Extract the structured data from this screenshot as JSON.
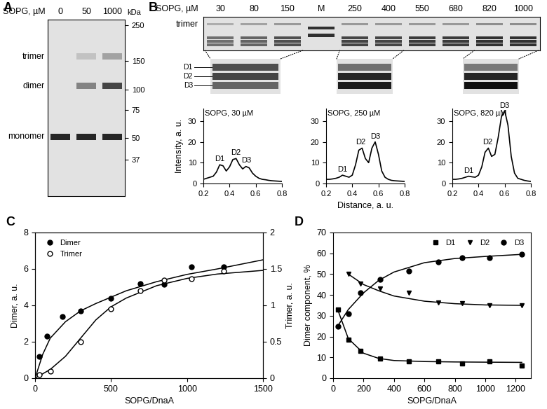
{
  "gel_a": {
    "label": "A",
    "header": "SOPG, µM",
    "lanes": [
      "0",
      "50",
      "1000"
    ],
    "marker_unit": "kDa",
    "markers": [
      250,
      150,
      100,
      75,
      50,
      37
    ],
    "ylim": [
      22,
      270
    ],
    "log": "y",
    "bands": [
      {
        "name": "trimer",
        "kda": 160,
        "intensity": [
          0,
          0.15,
          0.3
        ]
      },
      {
        "name": "dimer",
        "kda": 105,
        "intensity": [
          0,
          0.45,
          0.75
        ]
      },
      {
        "name": "monomer",
        "kda": 51,
        "intensity": [
          0.9,
          0.9,
          0.9
        ]
      }
    ]
  },
  "gel_b": {
    "label": "B",
    "header": "SOPG, µM",
    "lanes": [
      "30",
      "80",
      "150",
      "M",
      "250",
      "400",
      "550",
      "680",
      "820",
      "1000"
    ],
    "band_label": "trimer",
    "trimer": [
      0.25,
      0.3,
      0.35,
      0,
      0.35,
      0.35,
      0.35,
      0.35,
      0.4,
      0.4
    ],
    "dimer": [
      0.55,
      0.6,
      0.7,
      0,
      0.75,
      0.75,
      0.8,
      0.8,
      0.85,
      0.85
    ],
    "marker_bands": [
      0,
      0,
      0,
      0.85,
      0,
      0,
      0,
      0,
      0,
      0
    ],
    "inset_labels": [
      "D1",
      "D2",
      "D3"
    ],
    "insets": [
      {
        "lanes": [
          0,
          2
        ],
        "bands": [
          0.7,
          0.75,
          0.6
        ]
      },
      {
        "lanes": [
          4,
          5
        ],
        "bands": [
          0.55,
          0.9,
          0.95
        ]
      },
      {
        "lanes": [
          8,
          9
        ],
        "bands": [
          0.5,
          0.9,
          1.0
        ]
      }
    ]
  },
  "chart_data": [
    {
      "type": "line",
      "title": "SOPG, 30 µM",
      "ylabel": "Intensity, a. u.",
      "color": "#000000",
      "x": [
        0.2,
        0.225,
        0.25,
        0.275,
        0.3,
        0.325,
        0.35,
        0.375,
        0.4,
        0.425,
        0.45,
        0.475,
        0.5,
        0.525,
        0.55,
        0.575,
        0.6,
        0.625,
        0.65,
        0.675,
        0.7,
        0.725,
        0.75,
        0.775,
        0.8
      ],
      "values": [
        2,
        2.5,
        3,
        3.5,
        5.5,
        9,
        8.5,
        6,
        8,
        11.5,
        12,
        9,
        7,
        8.2,
        7.5,
        5,
        3.5,
        2.5,
        2,
        1.8,
        1.5,
        1.3,
        1.2,
        1.1,
        1
      ],
      "xlim": [
        0.2,
        0.8
      ],
      "xticks": [
        0.2,
        0.4,
        0.6,
        0.8
      ],
      "ylim": [
        0,
        36
      ],
      "yticks": [
        0,
        10,
        20,
        30
      ],
      "annotations": [
        {
          "text": "D1",
          "x": 0.325,
          "y": 10
        },
        {
          "text": "D2",
          "x": 0.45,
          "y": 13
        },
        {
          "text": "D3",
          "x": 0.53,
          "y": 9.5
        }
      ]
    },
    {
      "type": "line",
      "title": "SOPG, 250 µM",
      "xlabel": "Distance, a. u.",
      "color": "#000000",
      "x": [
        0.2,
        0.225,
        0.25,
        0.275,
        0.3,
        0.325,
        0.35,
        0.375,
        0.4,
        0.425,
        0.45,
        0.475,
        0.5,
        0.525,
        0.55,
        0.575,
        0.6,
        0.625,
        0.65,
        0.675,
        0.7,
        0.725,
        0.75,
        0.775,
        0.8
      ],
      "values": [
        2,
        2,
        2.2,
        2.5,
        3,
        4,
        3.5,
        3,
        4,
        9,
        16,
        17,
        12,
        10,
        17,
        20,
        14,
        6,
        3,
        2,
        1.5,
        1.3,
        1.2,
        1.1,
        1
      ],
      "xlim": [
        0.2,
        0.8
      ],
      "xticks": [
        0.2,
        0.4,
        0.6,
        0.8
      ],
      "ylim": [
        0,
        36
      ],
      "yticks": [
        0,
        10,
        20,
        30
      ],
      "annotations": [
        {
          "text": "D1",
          "x": 0.325,
          "y": 5
        },
        {
          "text": "D2",
          "x": 0.465,
          "y": 18
        },
        {
          "text": "D3",
          "x": 0.575,
          "y": 21
        }
      ]
    },
    {
      "type": "line",
      "title": "SOPG, 820 µM",
      "color": "#000000",
      "x": [
        0.2,
        0.225,
        0.25,
        0.275,
        0.3,
        0.325,
        0.35,
        0.375,
        0.4,
        0.425,
        0.45,
        0.475,
        0.5,
        0.525,
        0.55,
        0.575,
        0.6,
        0.625,
        0.65,
        0.675,
        0.7,
        0.725,
        0.75,
        0.775,
        0.8
      ],
      "values": [
        2,
        2,
        2.2,
        2.5,
        3,
        3.5,
        3.2,
        3,
        4,
        8,
        15,
        17,
        13,
        14,
        22,
        32,
        35,
        28,
        13,
        5,
        2.5,
        2,
        1.5,
        1.2,
        1
      ],
      "xlim": [
        0.2,
        0.8
      ],
      "xticks": [
        0.2,
        0.4,
        0.6,
        0.8
      ],
      "ylim": [
        0,
        36
      ],
      "yticks": [
        0,
        10,
        20,
        30
      ],
      "annotations": [
        {
          "text": "D1",
          "x": 0.325,
          "y": 4.5
        },
        {
          "text": "D2",
          "x": 0.47,
          "y": 18
        },
        {
          "text": "D3",
          "x": 0.6,
          "y": 35.5
        }
      ]
    },
    {
      "panel": "C",
      "type": "scatter",
      "xlabel": "SOPG/DnaA",
      "ylabel": "Dimer, a. u.",
      "y2label": "Trimer, a. u.",
      "xlim": [
        0,
        1500
      ],
      "xticks": [
        0,
        500,
        1000,
        1500
      ],
      "ylim": [
        0,
        8
      ],
      "yticks": [
        0,
        2,
        4,
        6,
        8
      ],
      "y2lim": [
        0,
        2
      ],
      "y2ticks": [
        0,
        0.5,
        1,
        1.5,
        2
      ],
      "legend": "upper left",
      "series": [
        {
          "name": "Dimer",
          "color": "#000000",
          "marker": "circle",
          "line_style": "solid",
          "x": [
            30,
            80,
            180,
            300,
            500,
            690,
            850,
            1030,
            1240
          ],
          "values": [
            1.2,
            2.3,
            3.4,
            3.7,
            4.4,
            5.2,
            5.15,
            6.1,
            6.1
          ],
          "fit_x": [
            0,
            50,
            100,
            200,
            300,
            400,
            600,
            800,
            1000,
            1200,
            1500
          ],
          "fit_values": [
            0,
            1.3,
            2.2,
            3.1,
            3.7,
            4.1,
            4.8,
            5.3,
            5.7,
            6.0,
            6.5
          ]
        },
        {
          "name": "Trimer",
          "axis": "y2",
          "color": "#000000",
          "marker": "open_circle",
          "line_style": "solid",
          "x": [
            30,
            100,
            300,
            500,
            690,
            850,
            1030,
            1240
          ],
          "values": [
            0.05,
            0.1,
            0.5,
            0.95,
            1.2,
            1.35,
            1.37,
            1.47
          ],
          "fit_x": [
            0,
            100,
            200,
            300,
            400,
            500,
            600,
            800,
            1000,
            1200,
            1500
          ],
          "fit_values": [
            0,
            0.12,
            0.3,
            0.55,
            0.8,
            0.98,
            1.1,
            1.27,
            1.37,
            1.43,
            1.48
          ]
        }
      ]
    },
    {
      "panel": "D",
      "type": "scatter",
      "xlabel": "SOPG/DnaA",
      "ylabel": "Dimer component, %",
      "xlim": [
        0,
        1300
      ],
      "xticks": [
        0,
        200,
        400,
        600,
        800,
        1000,
        1200
      ],
      "ylim": [
        0,
        70
      ],
      "yticks": [
        0,
        10,
        20,
        30,
        40,
        50,
        60,
        70
      ],
      "legend": "upper right",
      "series": [
        {
          "name": "D1",
          "color": "#000000",
          "marker": "square",
          "line_style": "solid",
          "x": [
            30,
            100,
            180,
            310,
            500,
            690,
            850,
            1030,
            1240
          ],
          "values": [
            33,
            18.5,
            13,
            9.5,
            8,
            8,
            7,
            8,
            6
          ],
          "fit_x": [
            30,
            100,
            200,
            300,
            400,
            600,
            800,
            1000,
            1240
          ],
          "fit_values": [
            33,
            19,
            12,
            9.5,
            8.5,
            8,
            7.8,
            7.7,
            7.6
          ]
        },
        {
          "name": "D2",
          "color": "#000000",
          "marker": "triangle_down",
          "line_style": "solid",
          "x": [
            100,
            180,
            310,
            500,
            690,
            850,
            1030,
            1240
          ],
          "values": [
            50,
            45.5,
            43,
            41,
            36.5,
            36,
            35,
            35
          ],
          "fit_x": [
            100,
            200,
            300,
            400,
            600,
            800,
            1000,
            1240
          ],
          "fit_values": [
            50,
            45,
            42,
            39.5,
            37,
            35.8,
            35.2,
            35
          ]
        },
        {
          "name": "D3",
          "color": "#000000",
          "marker": "circle",
          "line_style": "solid",
          "x": [
            30,
            100,
            180,
            310,
            500,
            690,
            850,
            1030,
            1240
          ],
          "values": [
            25,
            31,
            41,
            47.5,
            51.5,
            56,
            58,
            58,
            59.5
          ],
          "fit_x": [
            30,
            100,
            200,
            300,
            400,
            600,
            800,
            1000,
            1240
          ],
          "fit_values": [
            25,
            33,
            41,
            47,
            51,
            55.5,
            57.5,
            58.5,
            59.5
          ]
        }
      ]
    }
  ]
}
